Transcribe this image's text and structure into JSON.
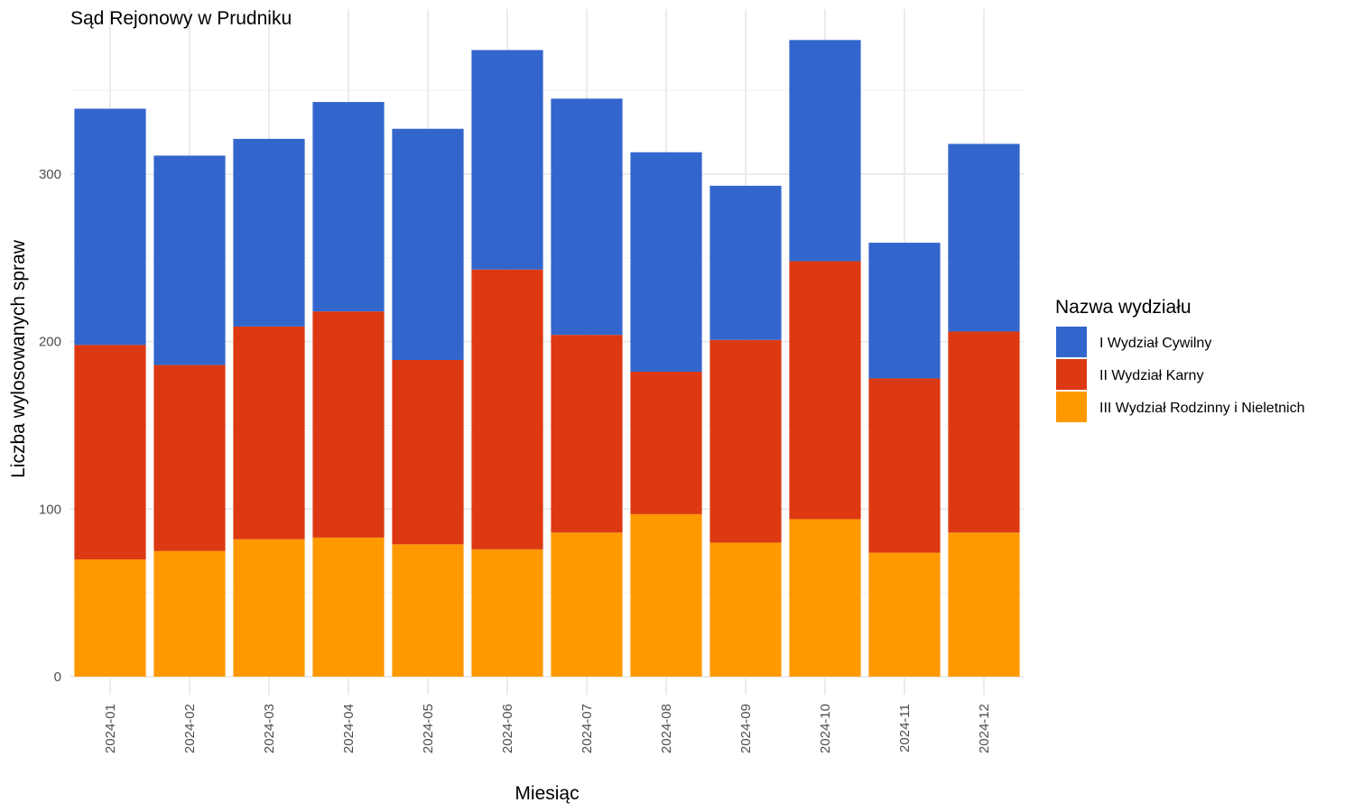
{
  "chart_data": {
    "type": "bar",
    "stacked": true,
    "title": "Sąd Rejonowy w Prudniku",
    "xlabel": "Miesiąc",
    "ylabel": "Liczba wylosowanych spraw",
    "ylim": [
      0,
      395
    ],
    "yticks": [
      0,
      100,
      200,
      300
    ],
    "grid": true,
    "legend_title": "Nazwa wydziału",
    "legend_position": "right",
    "categories": [
      "2024-01",
      "2024-02",
      "2024-03",
      "2024-04",
      "2024-05",
      "2024-06",
      "2024-07",
      "2024-08",
      "2024-09",
      "2024-10",
      "2024-11",
      "2024-12"
    ],
    "series": [
      {
        "name": "I Wydział Cywilny",
        "color": "#3366cc",
        "values": [
          141,
          125,
          112,
          125,
          138,
          131,
          141,
          131,
          92,
          132,
          81,
          112
        ]
      },
      {
        "name": "II Wydział Karny",
        "color": "#dc3912",
        "values": [
          128,
          111,
          127,
          135,
          110,
          167,
          118,
          85,
          121,
          154,
          104,
          120
        ]
      },
      {
        "name": "III Wydział Rodzinny i Nieletnich",
        "color": "#ff9900",
        "values": [
          70,
          75,
          82,
          83,
          79,
          76,
          86,
          97,
          80,
          94,
          74,
          86
        ]
      }
    ]
  }
}
